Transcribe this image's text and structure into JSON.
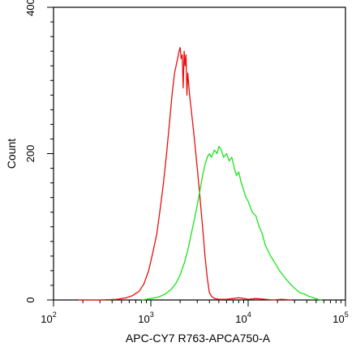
{
  "chart_data": {
    "type": "line",
    "title": "",
    "xlabel": "APC-CY7 R763-APCA750-A",
    "ylabel": "Count",
    "x_scale": "log",
    "xlim": [
      100,
      100000
    ],
    "ylim": [
      0,
      400
    ],
    "x_ticks": [
      {
        "value": 100,
        "base": "10",
        "exp": "2"
      },
      {
        "value": 1000,
        "base": "10",
        "exp": "3"
      },
      {
        "value": 10000,
        "base": "10",
        "exp": "4"
      },
      {
        "value": 100000,
        "base": "10",
        "exp": "5"
      }
    ],
    "y_ticks": [
      {
        "value": 0,
        "label": "0"
      },
      {
        "value": 200,
        "label": "200"
      },
      {
        "value": 400,
        "label": "400"
      }
    ],
    "grid": false,
    "legend": "none",
    "series": [
      {
        "color": "#e8100f",
        "x": [
          180,
          300,
          450,
          560,
          650,
          760,
          850,
          950,
          1050,
          1150,
          1250,
          1350,
          1450,
          1550,
          1650,
          1750,
          1850,
          1950,
          2000,
          2050,
          2100,
          2150,
          2200,
          2250,
          2300,
          2350,
          2400,
          2500,
          2600,
          2700,
          2800,
          3000,
          3200,
          3400,
          3600,
          3800,
          4000,
          4200,
          4500,
          5000,
          6000,
          7000,
          8000,
          9000,
          10000,
          12000,
          15000,
          18000,
          22000,
          28000
        ],
        "y": [
          0,
          0,
          1,
          3,
          6,
          12,
          22,
          40,
          65,
          90,
          125,
          160,
          200,
          240,
          280,
          310,
          325,
          340,
          345,
          330,
          335,
          290,
          340,
          320,
          335,
          280,
          310,
          280,
          260,
          240,
          220,
          180,
          140,
          100,
          60,
          30,
          10,
          5,
          2,
          1,
          1,
          2,
          3,
          2,
          1,
          2,
          1,
          0,
          1,
          0
        ]
      },
      {
        "color": "#1ce41a",
        "x": [
          800,
          1000,
          1200,
          1400,
          1600,
          1800,
          2000,
          2200,
          2400,
          2600,
          2800,
          3000,
          3200,
          3400,
          3600,
          3800,
          4000,
          4200,
          4500,
          4800,
          5000,
          5300,
          5600,
          6000,
          6400,
          6800,
          7200,
          7600,
          8000,
          8500,
          9000,
          9500,
          10000,
          11000,
          12000,
          13000,
          14000,
          15000,
          17000,
          19000,
          21000,
          24000,
          27000,
          30000,
          34000,
          38000,
          42000,
          47000,
          52000,
          57000
        ],
        "y": [
          0,
          2,
          4,
          8,
          14,
          22,
          34,
          50,
          68,
          90,
          110,
          130,
          150,
          170,
          185,
          195,
          200,
          195,
          205,
          200,
          210,
          205,
          195,
          200,
          190,
          195,
          180,
          170,
          175,
          160,
          150,
          140,
          135,
          120,
          115,
          100,
          90,
          75,
          60,
          50,
          40,
          30,
          22,
          16,
          10,
          8,
          5,
          3,
          1,
          0
        ]
      }
    ]
  }
}
